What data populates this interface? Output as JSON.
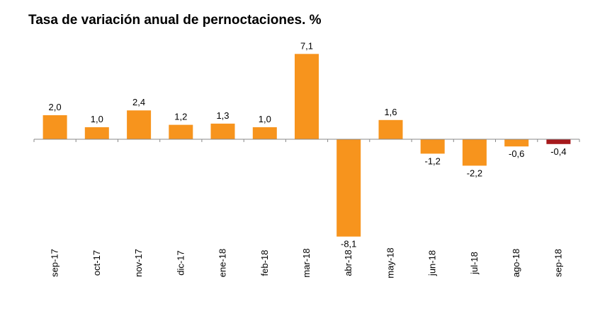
{
  "chart_data": {
    "type": "bar",
    "title": "Tasa de variación anual de pernoctaciones. %",
    "categories": [
      "sep-17",
      "oct-17",
      "nov-17",
      "dic-17",
      "ene-18",
      "feb-18",
      "mar-18",
      "abr-18",
      "may-18",
      "jun-18",
      "jul-18",
      "ago-18",
      "sep-18"
    ],
    "values": [
      2.0,
      1.0,
      2.4,
      1.2,
      1.3,
      1.0,
      7.1,
      -8.1,
      1.6,
      -1.2,
      -2.2,
      -0.6,
      -0.4
    ],
    "value_labels": [
      "2,0",
      "1,0",
      "2,4",
      "1,2",
      "1,3",
      "1,0",
      "7,1",
      "-8,1",
      "1,6",
      "-1,2",
      "-2,2",
      "-0,6",
      "-0,4"
    ],
    "ylim": [
      -8.1,
      7.1
    ],
    "grid": false,
    "colors": {
      "default": "#f7941d",
      "highlight": "#a6191c",
      "axis": "#888888"
    },
    "highlight_index": 12
  }
}
